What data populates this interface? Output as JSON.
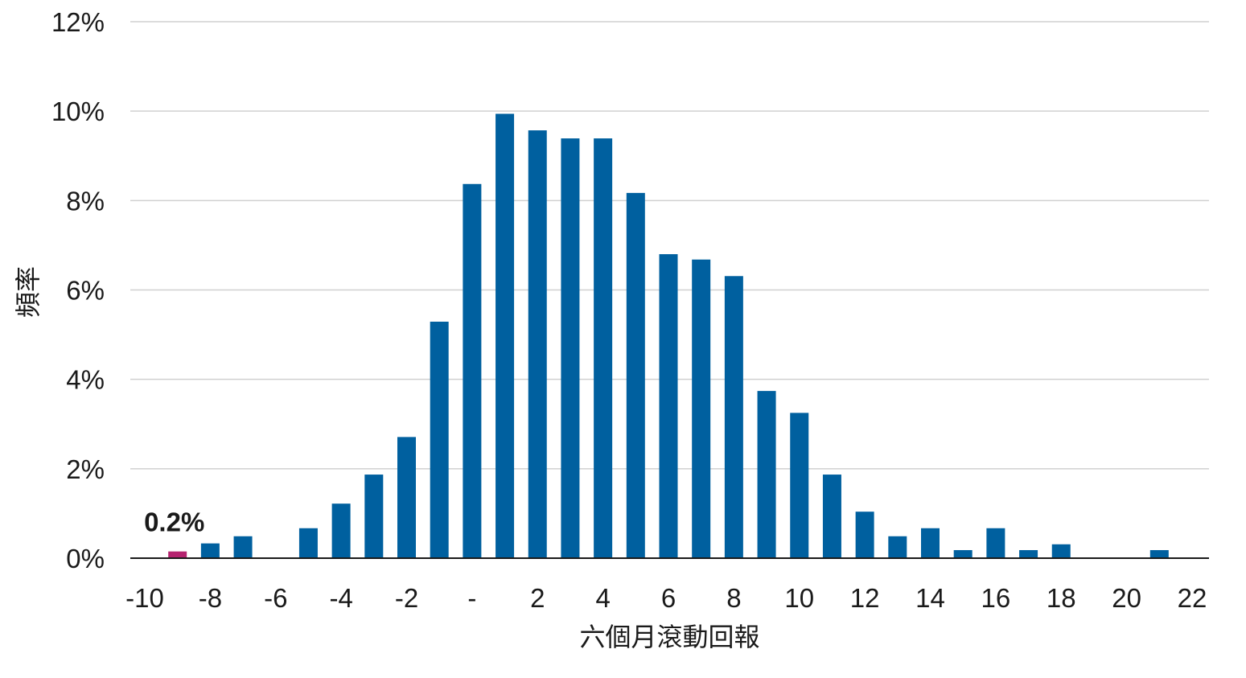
{
  "chart_data": {
    "type": "bar",
    "title": "",
    "xlabel": "六個月滾動回報",
    "ylabel": "頻率",
    "ylim": [
      0,
      12
    ],
    "y_ticks": [
      0,
      2,
      4,
      6,
      8,
      10,
      12
    ],
    "y_tick_labels": [
      "0%",
      "2%",
      "4%",
      "6%",
      "8%",
      "10%",
      "12%"
    ],
    "xlim": [
      -10,
      22
    ],
    "x_ticks": [
      -10,
      -8,
      -6,
      -4,
      -2,
      0,
      2,
      4,
      6,
      8,
      10,
      12,
      14,
      16,
      18,
      20,
      22
    ],
    "x_tick_labels": [
      "-10",
      "-8",
      "-6",
      "-4",
      "-2",
      "-",
      "2",
      "4",
      "6",
      "8",
      "10",
      "12",
      "14",
      "16",
      "18",
      "20",
      "22"
    ],
    "grid": "horizontal",
    "colors": {
      "bar": "#00609f",
      "highlight": "#b5236f",
      "grid": "#d0d0d0",
      "axis": "#1a1a1a"
    },
    "series": [
      {
        "x": [
          -9,
          -8,
          -7,
          -6,
          -5,
          -4,
          -3,
          -2,
          -1,
          0,
          1,
          2,
          3,
          4,
          5,
          6,
          7,
          8,
          9,
          10,
          11,
          12,
          13,
          14,
          15,
          16,
          17,
          18,
          19,
          20,
          21
        ],
        "values": [
          0.15,
          0.33,
          0.49,
          0,
          0.67,
          1.22,
          1.87,
          2.71,
          5.29,
          8.37,
          9.94,
          9.57,
          9.39,
          9.39,
          8.17,
          6.8,
          6.68,
          6.31,
          3.74,
          3.25,
          1.87,
          1.04,
          0.49,
          0.67,
          0.18,
          0.67,
          0.18,
          0.31,
          0,
          0,
          0.18
        ]
      }
    ],
    "highlight": {
      "x": -9,
      "color": "#b5236f",
      "label": "0.2%"
    }
  }
}
